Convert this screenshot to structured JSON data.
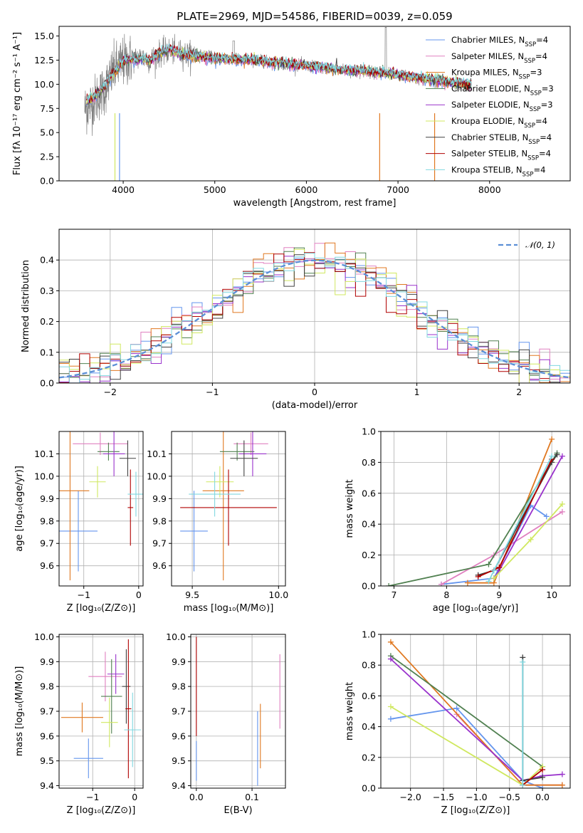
{
  "figure_title": "PLATE=2969, MJD=54586, FIBERID=0039, z=0.059",
  "colors": {
    "Chabrier MILES": "#6495ed",
    "Salpeter MILES": "#e080c0",
    "Kroupa MILES": "#e07820",
    "Chabrier ELODIE": "#508050",
    "Salpeter ELODIE": "#9932cc",
    "Kroupa ELODIE": "#d0e860",
    "Chabrier STELIB": "#404040",
    "Salpeter STELIB": "#b00000",
    "Kroupa STELIB": "#80d8e0",
    "data": "#808080"
  },
  "chart_data": [
    {
      "type": "line",
      "title": "PLATE=2969, MJD=54586, FIBERID=0039, z=0.059",
      "xlabel": "wavelength [Angstrom, rest frame]",
      "ylabel": "Flux [fλ 10⁻¹⁷ erg cm⁻² s⁻¹ A⁻¹]",
      "xlim": [
        3300,
        8880
      ],
      "ylim": [
        0,
        16
      ],
      "xticks": [
        "4000",
        "5000",
        "6000",
        "7000",
        "8000"
      ],
      "yticks": [
        "0.0",
        "2.5",
        "5.0",
        "7.5",
        "10.0",
        "12.5",
        "15.0"
      ],
      "grid": false,
      "legend_position": "top-right",
      "legend": [
        {
          "name": "Chabrier MILES",
          "suffix": "=4"
        },
        {
          "name": "Salpeter MILES",
          "suffix": "=4"
        },
        {
          "name": "Kroupa MILES",
          "suffix": "=3"
        },
        {
          "name": "Chabrier ELODIE",
          "suffix": "=3"
        },
        {
          "name": "Salpeter ELODIE",
          "suffix": "=3"
        },
        {
          "name": "Kroupa ELODIE",
          "suffix": "=4"
        },
        {
          "name": "Chabrier STELIB",
          "suffix": "=4"
        },
        {
          "name": "Salpeter STELIB",
          "suffix": "=4"
        },
        {
          "name": "Kroupa STELIB",
          "suffix": "=4"
        }
      ],
      "x": [
        3600,
        3700,
        3800,
        3900,
        4000,
        4100,
        4200,
        4300,
        4400,
        4500,
        4600,
        4700,
        4800,
        4900,
        5000,
        5200,
        5400,
        5600,
        5800,
        6000,
        6200,
        6400,
        6600,
        6800,
        7000,
        7200,
        7400,
        7600,
        7800
      ],
      "series": [
        {
          "name": "data",
          "values": [
            7.5,
            8.5,
            9.5,
            11.5,
            12.3,
            12.6,
            12.8,
            12.5,
            13.2,
            13.5,
            13.3,
            13.1,
            13.0,
            12.9,
            12.8,
            12.6,
            12.5,
            12.3,
            12.1,
            11.9,
            11.7,
            11.5,
            11.4,
            11.2,
            11.0,
            10.6,
            10.3,
            10.1,
            9.9
          ]
        },
        {
          "name": "model",
          "values": [
            8.2,
            8.8,
            9.8,
            11.3,
            12.4,
            12.6,
            12.6,
            12.5,
            13.3,
            13.6,
            13.3,
            13.0,
            12.9,
            12.8,
            12.7,
            12.6,
            12.5,
            12.3,
            12.1,
            11.9,
            11.7,
            11.5,
            11.4,
            11.2,
            11.0,
            10.7,
            10.5,
            10.2,
            9.9
          ]
        }
      ]
    },
    {
      "type": "histogram",
      "xlabel": "(data-model)/error",
      "ylabel": "Normed distribution",
      "xlim": [
        -2.5,
        2.5
      ],
      "ylim": [
        0,
        0.5
      ],
      "xticks": [
        "−2",
        "−1",
        "0",
        "1",
        "2"
      ],
      "yticks": [
        "0.0",
        "0.1",
        "0.2",
        "0.3",
        "0.4"
      ],
      "grid": true,
      "legend_position": "top-right",
      "legend": [
        {
          "name": "𝒩(0, 1)"
        }
      ],
      "bin_width": 0.1,
      "reference": "N(0,1) gaussian (dashed)"
    },
    {
      "type": "scatter",
      "panel": "age vs Z",
      "xlabel": "Z [log₁₀(Z/Z⊙)]",
      "ylabel": "age  [log₁₀(age/yr)]",
      "xlim": [
        -1.45,
        0.08
      ],
      "ylim": [
        9.51,
        10.2
      ],
      "xticks": [
        "−1",
        "0"
      ],
      "yticks": [
        "9.6",
        "9.7",
        "9.8",
        "9.9",
        "10.0",
        "10.1"
      ],
      "grid": true,
      "points": [
        {
          "name": "Chabrier MILES",
          "x": -1.1,
          "xerr": 0.35,
          "y": 9.755,
          "yerr": 0.18
        },
        {
          "name": "Salpeter MILES",
          "x": -0.7,
          "xerr": 0.5,
          "y": 10.145,
          "yerr": 0.05
        },
        {
          "name": "Kroupa MILES",
          "x": -1.25,
          "xerr": 0.35,
          "y": 9.935,
          "yerr": 0.4
        },
        {
          "name": "Chabrier ELODIE",
          "x": -0.55,
          "xerr": 0.2,
          "y": 10.11,
          "yerr": 0.04
        },
        {
          "name": "Salpeter ELODIE",
          "x": -0.45,
          "xerr": 0.2,
          "y": 10.1,
          "yerr": 0.1
        },
        {
          "name": "Kroupa ELODIE",
          "x": -0.75,
          "xerr": 0.15,
          "y": 9.975,
          "yerr": 0.07
        },
        {
          "name": "Chabrier STELIB",
          "x": -0.2,
          "xerr": 0.15,
          "y": 10.08,
          "yerr": 0.08
        },
        {
          "name": "Salpeter STELIB",
          "x": -0.15,
          "xerr": 0.05,
          "y": 9.86,
          "yerr": 0.17
        },
        {
          "name": "Kroupa STELIB",
          "x": -0.05,
          "xerr": 0.15,
          "y": 9.92,
          "yerr": 0.1
        }
      ]
    },
    {
      "type": "scatter",
      "panel": "age vs mass",
      "xlabel": "mass [log₁₀(M/M⊙)]",
      "ylabel": "",
      "xlim": [
        9.38,
        10.04
      ],
      "ylim": [
        9.51,
        10.2
      ],
      "xticks": [
        "9.5",
        "10.0"
      ],
      "yticks": [
        "9.6",
        "9.7",
        "9.8",
        "9.9",
        "10.0",
        "10.1"
      ],
      "grid": true,
      "points": [
        {
          "name": "Chabrier MILES",
          "x": 9.51,
          "xerr": 0.08,
          "y": 9.755,
          "yerr": 0.18
        },
        {
          "name": "Salpeter MILES",
          "x": 9.84,
          "xerr": 0.1,
          "y": 10.145,
          "yerr": 0.05
        },
        {
          "name": "Kroupa MILES",
          "x": 9.68,
          "xerr": 0.12,
          "y": 9.935,
          "yerr": 0.4
        },
        {
          "name": "Chabrier ELODIE",
          "x": 9.76,
          "xerr": 0.1,
          "y": 10.11,
          "yerr": 0.04
        },
        {
          "name": "Salpeter ELODIE",
          "x": 9.85,
          "xerr": 0.08,
          "y": 10.1,
          "yerr": 0.1
        },
        {
          "name": "Kroupa ELODIE",
          "x": 9.66,
          "xerr": 0.08,
          "y": 9.975,
          "yerr": 0.07
        },
        {
          "name": "Chabrier STELIB",
          "x": 9.8,
          "xerr": 0.08,
          "y": 10.08,
          "yerr": 0.08
        },
        {
          "name": "Salpeter STELIB",
          "x": 9.71,
          "xerr": 0.28,
          "y": 9.86,
          "yerr": 0.17
        },
        {
          "name": "Kroupa STELIB",
          "x": 9.63,
          "xerr": 0.15,
          "y": 9.92,
          "yerr": 0.1
        }
      ]
    },
    {
      "type": "line",
      "panel": "mass weight vs age",
      "xlabel": "age  [log₁₀(age/yr)]",
      "ylabel": "mass weight",
      "xlim": [
        6.75,
        10.35
      ],
      "ylim": [
        0,
        1.0
      ],
      "xticks": [
        "7",
        "8",
        "9",
        "10"
      ],
      "yticks": [
        "0.0",
        "0.2",
        "0.4",
        "0.6",
        "0.8",
        "1.0"
      ],
      "grid": true,
      "series": [
        {
          "name": "Chabrier MILES",
          "x": [
            7.9,
            8.9,
            9.6,
            9.9
          ],
          "values": [
            0.01,
            0.05,
            0.52,
            0.45
          ]
        },
        {
          "name": "Salpeter MILES",
          "x": [
            7.9,
            8.9,
            10.2
          ],
          "values": [
            0.01,
            0.2,
            0.48
          ]
        },
        {
          "name": "Kroupa MILES",
          "x": [
            8.4,
            8.9,
            10.0
          ],
          "values": [
            0.02,
            0.02,
            0.95
          ]
        },
        {
          "name": "Chabrier ELODIE",
          "x": [
            6.9,
            8.8,
            10.1
          ],
          "values": [
            0.0,
            0.14,
            0.86
          ]
        },
        {
          "name": "Salpeter ELODIE",
          "x": [
            8.9,
            9.0,
            10.2
          ],
          "values": [
            0.05,
            0.1,
            0.84
          ]
        },
        {
          "name": "Kroupa ELODIE",
          "x": [
            8.9,
            9.6,
            10.2
          ],
          "values": [
            0.05,
            0.3,
            0.53
          ]
        },
        {
          "name": "Chabrier STELIB",
          "x": [
            8.6,
            8.9,
            10.0,
            10.1
          ],
          "values": [
            0.07,
            0.1,
            0.8,
            0.85
          ]
        },
        {
          "name": "Salpeter STELIB",
          "x": [
            8.6,
            9.0,
            10.0
          ],
          "values": [
            0.06,
            0.12,
            0.82
          ]
        },
        {
          "name": "Kroupa STELIB",
          "x": [
            8.8,
            8.9,
            10.0
          ],
          "values": [
            0.03,
            0.1,
            0.84
          ]
        }
      ]
    },
    {
      "type": "scatter",
      "panel": "mass vs Z",
      "xlabel": "Z [log₁₀(Z/Z⊙)]",
      "ylabel": "mass [log₁₀(M/M⊙)]",
      "xlim": [
        -1.8,
        0.2
      ],
      "ylim": [
        9.39,
        10.01
      ],
      "xticks": [
        "−1",
        "0"
      ],
      "yticks": [
        "9.4",
        "9.5",
        "9.6",
        "9.7",
        "9.8",
        "9.9",
        "10.0"
      ],
      "grid": true,
      "points": [
        {
          "name": "Chabrier MILES",
          "x": -1.1,
          "xerr": 0.35,
          "y": 9.51,
          "yerr": 0.08
        },
        {
          "name": "Salpeter MILES",
          "x": -0.7,
          "xerr": 0.4,
          "y": 9.84,
          "yerr": 0.1
        },
        {
          "name": "Kroupa MILES",
          "x": -1.25,
          "xerr": 0.5,
          "y": 9.675,
          "yerr": 0.06
        },
        {
          "name": "Chabrier ELODIE",
          "x": -0.55,
          "xerr": 0.25,
          "y": 9.76,
          "yerr": 0.15
        },
        {
          "name": "Salpeter ELODIE",
          "x": -0.45,
          "xerr": 0.2,
          "y": 9.85,
          "yerr": 0.08
        },
        {
          "name": "Kroupa ELODIE",
          "x": -0.6,
          "xerr": 0.2,
          "y": 9.655,
          "yerr": 0.1
        },
        {
          "name": "Chabrier STELIB",
          "x": -0.2,
          "xerr": 0.1,
          "y": 9.8,
          "yerr": 0.15
        },
        {
          "name": "Salpeter STELIB",
          "x": -0.15,
          "xerr": 0.07,
          "y": 9.71,
          "yerr": 0.28
        },
        {
          "name": "Kroupa STELIB",
          "x": -0.05,
          "xerr": 0.2,
          "y": 9.625,
          "yerr": 0.15
        }
      ]
    },
    {
      "type": "scatter",
      "panel": "mass vs E(B-V)",
      "xlabel": "E(B-V)",
      "ylabel": "",
      "xlim": [
        -0.01,
        0.16
      ],
      "ylim": [
        9.39,
        10.01
      ],
      "xticks": [
        "0.0",
        "0.1"
      ],
      "yticks": [
        "9.4",
        "9.5",
        "9.6",
        "9.7",
        "9.8",
        "9.9",
        "10.0"
      ],
      "grid": true,
      "points": [
        {
          "name": "Salpeter STELIB",
          "x": 0.0,
          "y": 9.8,
          "yerr": 0.2
        },
        {
          "name": "Chabrier MILES",
          "x": 0.0,
          "y": 9.5,
          "yerr": 0.08
        },
        {
          "name": "Kroupa MILES",
          "x": 0.115,
          "y": 9.6,
          "yerr": 0.13
        },
        {
          "name": "Chabrier MILES",
          "x": 0.11,
          "y": 9.55,
          "yerr": 0.15
        },
        {
          "name": "Salpeter MILES",
          "x": 0.15,
          "y": 9.78,
          "yerr": 0.15
        }
      ]
    },
    {
      "type": "line",
      "panel": "mass weight vs Z",
      "xlabel": "Z [log₁₀(Z/Z⊙)]",
      "ylabel": "mass weight",
      "xlim": [
        -2.45,
        0.42
      ],
      "ylim": [
        0,
        1.0
      ],
      "xticks": [
        "−2.0",
        "−1.5",
        "−1.0",
        "−0.5",
        "0.0"
      ],
      "yticks": [
        "0.0",
        "0.2",
        "0.4",
        "0.6",
        "0.8",
        "1.0"
      ],
      "grid": true,
      "series": [
        {
          "name": "Chabrier MILES",
          "x": [
            -2.3,
            -1.3,
            -0.3,
            0.0
          ],
          "values": [
            0.45,
            0.52,
            0.05,
            0.0
          ]
        },
        {
          "name": "Salpeter MILES",
          "x": [
            -1.3,
            -0.3,
            0.3
          ],
          "values": [
            0.48,
            0.02,
            0.02
          ]
        },
        {
          "name": "Kroupa MILES",
          "x": [
            -2.3,
            -0.3,
            0.3
          ],
          "values": [
            0.95,
            0.02,
            0.02
          ]
        },
        {
          "name": "Chabrier ELODIE",
          "x": [
            -2.3,
            0.0
          ],
          "values": [
            0.86,
            0.14
          ]
        },
        {
          "name": "Salpeter ELODIE",
          "x": [
            -2.3,
            -0.3,
            0.0,
            0.3
          ],
          "values": [
            0.84,
            0.05,
            0.08,
            0.09
          ]
        },
        {
          "name": "Kroupa ELODIE",
          "x": [
            -2.3,
            -0.3,
            0.0
          ],
          "values": [
            0.53,
            0.02,
            0.14
          ]
        },
        {
          "name": "Chabrier STELIB",
          "x": [
            -0.3,
            -0.3,
            0.0
          ],
          "values": [
            0.85,
            0.05,
            0.07
          ]
        },
        {
          "name": "Salpeter STELIB",
          "x": [
            -0.3,
            0.0
          ],
          "values": [
            0.02,
            0.12
          ]
        },
        {
          "name": "Kroupa STELIB",
          "x": [
            -0.3,
            -0.3
          ],
          "values": [
            0.82,
            0.02
          ]
        }
      ]
    }
  ]
}
